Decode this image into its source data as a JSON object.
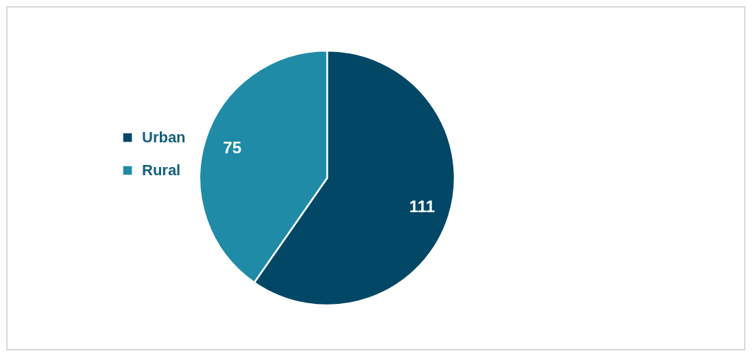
{
  "chart_data": {
    "type": "pie",
    "categories": [
      "Urban",
      "Rural"
    ],
    "values": [
      111,
      75
    ],
    "colors": [
      "#024866",
      "#1f8ba6"
    ],
    "data_labels": true,
    "legend": "left"
  }
}
